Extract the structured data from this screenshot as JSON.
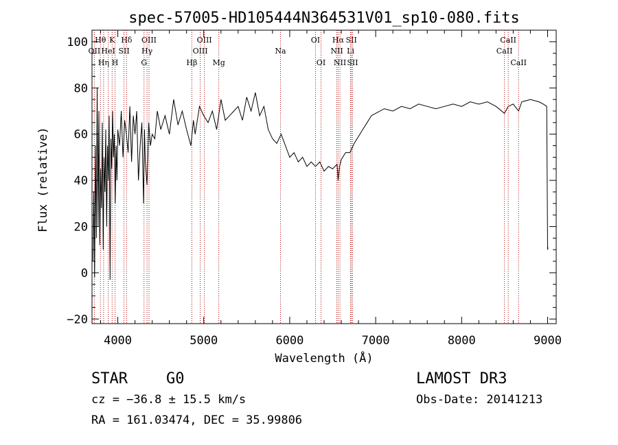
{
  "chart_data": {
    "type": "line",
    "title": "spec-57005-HD105444N364531V01_sp10-080.fits",
    "xlabel": "Wavelength (Å)",
    "ylabel": "Flux (relative)",
    "xlim": [
      3700,
      9100
    ],
    "ylim": [
      -22,
      105
    ],
    "xticks": [
      {
        "v": 4000,
        "label": "4000"
      },
      {
        "v": 5000,
        "label": "5000"
      },
      {
        "v": 6000,
        "label": "6000"
      },
      {
        "v": 7000,
        "label": "7000"
      },
      {
        "v": 8000,
        "label": "8000"
      },
      {
        "v": 9000,
        "label": "9000"
      }
    ],
    "yticks": [
      {
        "v": -20,
        "label": "−20"
      },
      {
        "v": 0,
        "label": "0"
      },
      {
        "v": 20,
        "label": "20"
      },
      {
        "v": 40,
        "label": "40"
      },
      {
        "v": 60,
        "label": "60"
      },
      {
        "v": 80,
        "label": "80"
      },
      {
        "v": 100,
        "label": "100"
      }
    ],
    "series": [
      {
        "name": "flux",
        "x": [
          3710,
          3720,
          3730,
          3740,
          3750,
          3760,
          3770,
          3780,
          3790,
          3800,
          3810,
          3820,
          3830,
          3840,
          3850,
          3860,
          3870,
          3880,
          3890,
          3900,
          3910,
          3920,
          3930,
          3940,
          3950,
          3960,
          3970,
          3980,
          3990,
          4000,
          4020,
          4040,
          4060,
          4080,
          4100,
          4120,
          4140,
          4160,
          4180,
          4200,
          4220,
          4240,
          4260,
          4280,
          4300,
          4310,
          4320,
          4340,
          4360,
          4380,
          4400,
          4430,
          4460,
          4500,
          4550,
          4600,
          4650,
          4700,
          4750,
          4800,
          4850,
          4880,
          4900,
          4950,
          5000,
          5050,
          5100,
          5150,
          5200,
          5250,
          5300,
          5350,
          5400,
          5450,
          5500,
          5550,
          5600,
          5650,
          5700,
          5750,
          5800,
          5850,
          5900,
          5950,
          6000,
          6050,
          6100,
          6150,
          6200,
          6250,
          6300,
          6350,
          6400,
          6450,
          6500,
          6550,
          6563,
          6580,
          6600,
          6650,
          6700,
          6750,
          6800,
          6850,
          6900,
          6950,
          7000,
          7100,
          7200,
          7300,
          7400,
          7500,
          7600,
          7700,
          7800,
          7900,
          8000,
          8100,
          8200,
          8300,
          8400,
          8498,
          8542,
          8600,
          8662,
          8700,
          8800,
          8900,
          8950,
          8990,
          9000,
          9005
        ],
        "y": [
          5,
          35,
          -2,
          55,
          15,
          80,
          20,
          70,
          12,
          45,
          28,
          65,
          10,
          50,
          35,
          62,
          20,
          55,
          40,
          68,
          -3,
          58,
          45,
          70,
          50,
          60,
          30,
          55,
          40,
          62,
          55,
          70,
          50,
          66,
          60,
          52,
          72,
          48,
          68,
          60,
          70,
          40,
          55,
          65,
          30,
          62,
          48,
          38,
          65,
          55,
          60,
          58,
          70,
          62,
          68,
          60,
          75,
          64,
          70,
          62,
          55,
          66,
          60,
          72,
          68,
          65,
          70,
          62,
          75,
          66,
          68,
          70,
          72,
          66,
          76,
          70,
          78,
          68,
          72,
          62,
          58,
          56,
          60,
          55,
          50,
          52,
          48,
          50,
          46,
          48,
          46,
          48,
          44,
          46,
          45,
          47,
          40,
          46,
          49,
          52,
          52,
          56,
          59,
          62,
          65,
          68,
          69,
          71,
          70,
          72,
          71,
          73,
          72,
          71,
          72,
          73,
          72,
          74,
          73,
          74,
          72,
          69,
          72,
          73,
          70,
          74,
          75,
          74,
          73,
          72,
          10,
          11
        ]
      }
    ],
    "lines": [
      {
        "name": "Hθ",
        "wl": 3798,
        "row": 1
      },
      {
        "name": "OII",
        "wl": 3727,
        "row": 2
      },
      {
        "name": "Hη",
        "wl": 3835,
        "row": 3
      },
      {
        "name": "K",
        "wl": 3934,
        "row": 1
      },
      {
        "name": "H",
        "wl": 3968,
        "row": 3
      },
      {
        "name": "HeI",
        "wl": 3889,
        "row": 2
      },
      {
        "name": "SII",
        "wl": 4072,
        "row": 2
      },
      {
        "name": "Hδ",
        "wl": 4102,
        "row": 1
      },
      {
        "name": "OIII",
        "wl": 4363,
        "row": 1
      },
      {
        "name": "Hγ",
        "wl": 4340,
        "row": 2
      },
      {
        "name": "G",
        "wl": 4305,
        "row": 3
      },
      {
        "name": "Hβ",
        "wl": 4861,
        "row": 3
      },
      {
        "name": "OIII",
        "wl": 5007,
        "row": 1
      },
      {
        "name": "OIII",
        "wl": 4959,
        "row": 2
      },
      {
        "name": "Mg",
        "wl": 5175,
        "row": 3
      },
      {
        "name": "Na",
        "wl": 5893,
        "row": 2
      },
      {
        "name": "OI",
        "wl": 6300,
        "row": 1
      },
      {
        "name": "OI",
        "wl": 6364,
        "row": 3
      },
      {
        "name": "Hα",
        "wl": 6563,
        "row": 1
      },
      {
        "name": "NII",
        "wl": 6548,
        "row": 2
      },
      {
        "name": "NII",
        "wl": 6584,
        "row": 3
      },
      {
        "name": "SII",
        "wl": 6717,
        "row": 1
      },
      {
        "name": "Li",
        "wl": 6708,
        "row": 2
      },
      {
        "name": "SII",
        "wl": 6731,
        "row": 3
      },
      {
        "name": "CaII",
        "wl": 8542,
        "row": 1
      },
      {
        "name": "CaII",
        "wl": 8498,
        "row": 2
      },
      {
        "name": "CaII",
        "wl": 8662,
        "row": 3
      }
    ]
  },
  "info": {
    "object_class": "STAR",
    "subclass": "G0",
    "survey": "LAMOST DR3",
    "redshift": "cz = −36.8 ± 15.5 km/s",
    "obs_date": "Obs-Date: 20141213",
    "coords": "RA = 161.03474, DEC =  35.99806"
  }
}
